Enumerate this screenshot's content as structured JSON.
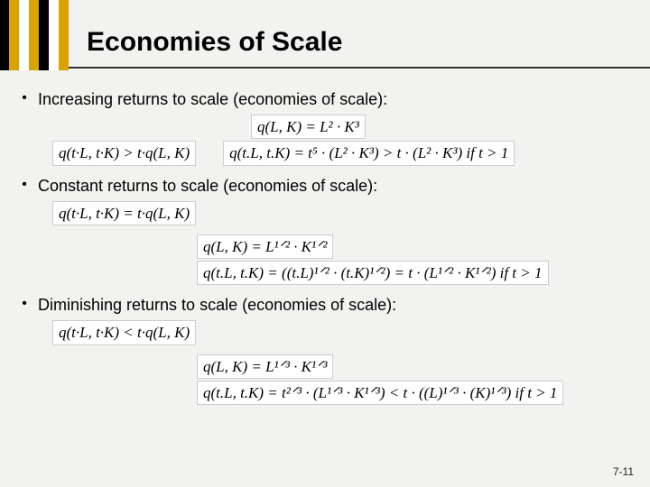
{
  "slide": {
    "title": "Economies of Scale",
    "page_number": "7-11",
    "background_color": "#f2f2f0",
    "stripe_colors": [
      "#000000",
      "#dba300",
      "#ffffff",
      "#dba300",
      "#000000",
      "#ffffff",
      "#dba300"
    ],
    "bullets": [
      {
        "text": "Increasing returns to scale (economies of scale):",
        "condition": "q(t·L, t·K) > t·q(L, K)",
        "example_def": "q(L, K) = L² · K³",
        "example_expand": "q(t.L, t.K) = t⁵ · (L² · K³) > t · (L² · K³)  if   t > 1"
      },
      {
        "text": "Constant returns to scale (economies of scale):",
        "condition": "q(t·L, t·K) = t·q(L, K)",
        "example_def": "q(L, K) = L¹ᐟ² · K¹ᐟ²",
        "example_expand": "q(t.L, t.K) = ((t.L)¹ᐟ² · (t.K)¹ᐟ²) = t · (L¹ᐟ² · K¹ᐟ²) if   t > 1"
      },
      {
        "text": "Diminishing returns to scale (economies of scale):",
        "condition": "q(t·L, t·K) < t·q(L, K)",
        "example_def": "q(L, K) = L¹ᐟ³ · K¹ᐟ³",
        "example_expand": "q(t.L, t.K) = t²ᐟ³ · (L¹ᐟ³ · K¹ᐟ³) < t · ((L)¹ᐟ³ · (K)¹ᐟ³) if   t > 1"
      }
    ],
    "equation_box": {
      "background": "#ffffff",
      "border_color": "#cccccc",
      "font_family": "Times New Roman",
      "font_style": "italic"
    }
  }
}
